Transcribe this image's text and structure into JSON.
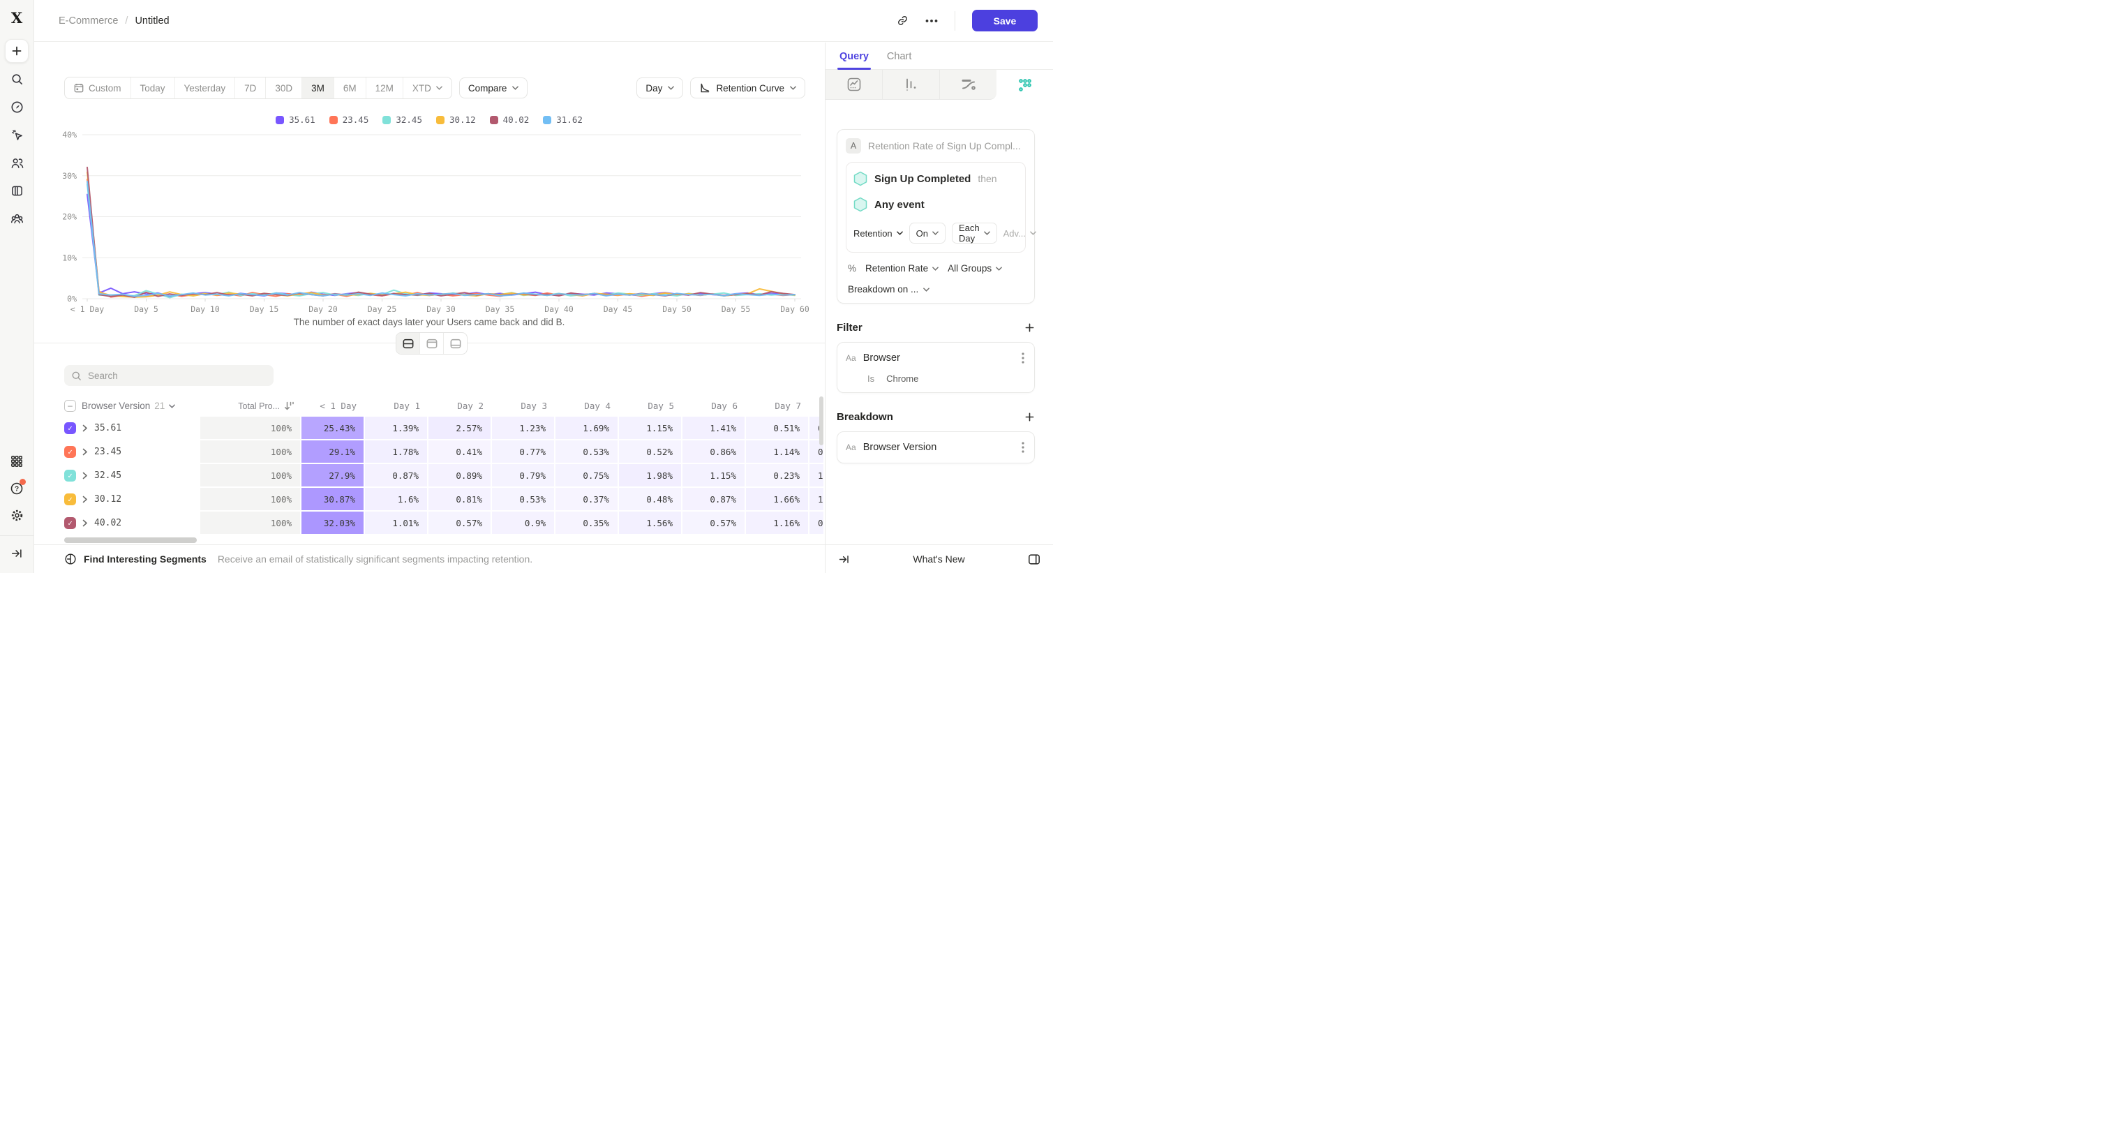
{
  "app": {
    "logo_letter": "X"
  },
  "header": {
    "breadcrumb": {
      "project": "E-Commerce",
      "separator": "/",
      "title": "Untitled"
    },
    "save_label": "Save"
  },
  "toolbar": {
    "ranges": [
      "Custom",
      "Today",
      "Yesterday",
      "7D",
      "30D",
      "3M",
      "6M",
      "12M",
      "XTD"
    ],
    "selected_range": "3M",
    "compare_label": "Compare",
    "granularity_label": "Day",
    "chart_type_label": "Retention Curve"
  },
  "search": {
    "placeholder": "Search"
  },
  "table": {
    "group_label": "Browser Version",
    "group_count": "21",
    "total_label": "Total Pro...",
    "day_columns": [
      "< 1 Day",
      "Day 1",
      "Day 2",
      "Day 3",
      "Day 4",
      "Day 5",
      "Day 6",
      "Day 7"
    ],
    "rows": [
      {
        "label": "35.61",
        "color": "#7856FF",
        "total": "100%",
        "cells": [
          "25.43%",
          "1.39%",
          "2.57%",
          "1.23%",
          "1.69%",
          "1.15%",
          "1.41%",
          "0.51%"
        ],
        "clipped": "0"
      },
      {
        "label": "23.45",
        "color": "#FF7557",
        "total": "100%",
        "cells": [
          "29.1%",
          "1.78%",
          "0.41%",
          "0.77%",
          "0.53%",
          "0.52%",
          "0.86%",
          "1.14%"
        ],
        "clipped": "0"
      },
      {
        "label": "32.45",
        "color": "#80E1D9",
        "total": "100%",
        "cells": [
          "27.9%",
          "0.87%",
          "0.89%",
          "0.79%",
          "0.75%",
          "1.98%",
          "1.15%",
          "0.23%"
        ],
        "clipped": "1"
      },
      {
        "label": "30.12",
        "color": "#F8BC3B",
        "total": "100%",
        "cells": [
          "30.87%",
          "1.6%",
          "0.81%",
          "0.53%",
          "0.37%",
          "0.48%",
          "0.87%",
          "1.66%"
        ],
        "clipped": "1"
      },
      {
        "label": "40.02",
        "color": "#B2596E",
        "total": "100%",
        "cells": [
          "32.03%",
          "1.01%",
          "0.57%",
          "0.9%",
          "0.35%",
          "1.56%",
          "0.57%",
          "1.16%"
        ],
        "clipped": "0"
      }
    ]
  },
  "chart_data": {
    "type": "line",
    "caption": "The number of exact days later your Users came back and did B.",
    "ylim": [
      0,
      40
    ],
    "y_ticks": [
      {
        "value": 0,
        "label": "0%"
      },
      {
        "value": 10,
        "label": "10%"
      },
      {
        "value": 20,
        "label": "20%"
      },
      {
        "value": 30,
        "label": "30%"
      },
      {
        "value": 40,
        "label": "40%"
      }
    ],
    "x_tick_labels": [
      "< 1 Day",
      "Day 5",
      "Day 10",
      "Day 15",
      "Day 20",
      "Day 25",
      "Day 30",
      "Day 35",
      "Day 40",
      "Day 45",
      "Day 50",
      "Day 55",
      "Day 60"
    ],
    "x_tick_step_days": 5,
    "x_range_days": [
      0,
      60
    ],
    "grid": "horizontal",
    "legend_position": "top",
    "series": [
      {
        "name": "35.61",
        "color": "#7856FF",
        "values": [
          25.43,
          1.39,
          2.57,
          1.23,
          1.69,
          1.15,
          1.41,
          0.51,
          0.9,
          1.2,
          1.5,
          1.1,
          0.8,
          1.3,
          1.0,
          0.7,
          1.4,
          1.2,
          0.9,
          1.6,
          1.1,
          0.8,
          1.2,
          1.5,
          1.0,
          0.7,
          1.3,
          1.1,
          0.9,
          1.4,
          1.2,
          0.8,
          1.1,
          1.5,
          1.0,
          1.3,
          0.9,
          1.2,
          1.6,
          1.0,
          0.8,
          1.3,
          1.1,
          0.9,
          1.4,
          1.2,
          1.0,
          0.7,
          1.2,
          1.5,
          1.1,
          0.9,
          1.3,
          1.0,
          0.8,
          1.2,
          1.4,
          1.0,
          1.3,
          1.1,
          0.9
        ]
      },
      {
        "name": "23.45",
        "color": "#FF7557",
        "values": [
          29.1,
          1.78,
          0.41,
          0.77,
          0.53,
          0.52,
          0.86,
          1.14,
          0.6,
          1.0,
          1.3,
          0.8,
          1.1,
          0.7,
          1.5,
          1.0,
          0.6,
          1.2,
          0.9,
          1.4,
          0.8,
          1.1,
          0.6,
          1.3,
          1.0,
          0.7,
          1.2,
          0.9,
          1.5,
          0.8,
          1.1,
          0.7,
          1.0,
          1.3,
          0.9,
          0.6,
          1.2,
          1.0,
          0.8,
          1.4,
          0.9,
          1.1,
          0.7,
          1.3,
          1.0,
          0.8,
          1.2,
          0.6,
          1.0,
          1.4,
          0.9,
          1.1,
          0.8,
          1.2,
          0.7,
          1.0,
          1.3,
          0.9,
          1.1,
          0.8,
          1.0
        ]
      },
      {
        "name": "32.45",
        "color": "#80E1D9",
        "values": [
          27.9,
          0.87,
          0.89,
          0.79,
          0.75,
          1.98,
          1.15,
          0.23,
          1.1,
          0.7,
          1.3,
          1.0,
          1.6,
          0.8,
          1.2,
          0.9,
          1.4,
          1.0,
          0.7,
          1.2,
          1.5,
          0.9,
          1.1,
          0.8,
          1.3,
          1.0,
          2.1,
          1.2,
          0.8,
          1.1,
          0.9,
          1.4,
          1.0,
          0.7,
          1.2,
          1.0,
          1.5,
          0.8,
          1.1,
          0.9,
          1.3,
          0.7,
          1.0,
          1.2,
          0.9,
          1.4,
          1.1,
          0.8,
          1.2,
          1.0,
          0.7,
          1.3,
          0.9,
          1.1,
          1.4,
          0.8,
          1.0,
          1.2,
          0.9,
          1.1,
          0.8
        ]
      },
      {
        "name": "30.12",
        "color": "#F8BC3B",
        "values": [
          30.87,
          1.6,
          0.81,
          0.53,
          0.37,
          0.48,
          0.87,
          1.66,
          1.0,
          0.7,
          1.2,
          0.9,
          1.4,
          1.1,
          0.8,
          1.3,
          1.0,
          0.7,
          1.2,
          1.5,
          0.9,
          1.1,
          0.8,
          1.0,
          1.3,
          0.9,
          1.2,
          1.6,
          1.0,
          0.8,
          1.1,
          1.3,
          0.9,
          0.7,
          1.2,
          1.0,
          1.4,
          0.9,
          1.1,
          0.8,
          1.2,
          1.0,
          0.7,
          1.3,
          1.1,
          0.9,
          1.2,
          1.0,
          0.8,
          1.4,
          1.0,
          1.2,
          0.9,
          1.1,
          0.7,
          1.0,
          1.2,
          2.4,
          1.8,
          1.2,
          0.9
        ]
      },
      {
        "name": "40.02",
        "color": "#B2596E",
        "values": [
          32.03,
          1.01,
          0.57,
          0.9,
          0.35,
          1.56,
          0.57,
          1.16,
          0.8,
          1.2,
          1.0,
          1.5,
          0.9,
          1.1,
          0.7,
          1.3,
          1.0,
          0.8,
          1.4,
          1.0,
          0.7,
          1.2,
          0.9,
          1.6,
          1.1,
          0.8,
          1.2,
          1.0,
          0.9,
          1.3,
          0.7,
          1.1,
          1.5,
          0.9,
          1.2,
          0.8,
          1.0,
          1.3,
          0.9,
          1.1,
          0.7,
          1.4,
          1.0,
          1.2,
          0.8,
          1.1,
          0.9,
          1.3,
          1.0,
          0.7,
          1.2,
          0.9,
          1.5,
          1.1,
          0.8,
          1.0,
          1.2,
          0.9,
          1.7,
          1.3,
          1.0
        ]
      },
      {
        "name": "31.62",
        "color": "#72BEF4",
        "values": [
          28.6,
          1.2,
          0.9,
          1.1,
          0.6,
          0.8,
          1.3,
          0.7,
          1.0,
          1.4,
          0.9,
          1.1,
          0.7,
          1.2,
          1.0,
          0.8,
          1.3,
          0.9,
          1.5,
          1.0,
          0.7,
          1.1,
          0.9,
          1.2,
          0.8,
          1.4,
          1.0,
          0.7,
          1.2,
          0.9,
          1.1,
          1.3,
          0.8,
          1.0,
          1.2,
          0.7,
          0.9,
          1.4,
          1.1,
          0.8,
          1.2,
          1.0,
          0.9,
          1.3,
          0.7,
          1.1,
          0.9,
          1.2,
          1.0,
          0.8,
          1.3,
          1.0,
          0.9,
          1.1,
          0.7,
          1.2,
          1.0,
          0.8,
          1.1,
          0.9,
          1.0
        ]
      }
    ]
  },
  "footer": {
    "title": "Find Interesting Segments",
    "subtitle": "Receive an email of statistically significant segments impacting retention."
  },
  "panel": {
    "tabs": [
      {
        "label": "Query",
        "active": true
      },
      {
        "label": "Chart",
        "active": false
      }
    ],
    "query": {
      "badge": "A",
      "title": "Retention Rate of Sign Up Compl...",
      "first_event": "Sign Up Completed",
      "then_label": "then",
      "return_event": "Any event",
      "retention_label": "Retention",
      "on_label": "On",
      "bucket_label": "Each Day",
      "advanced_label": "Adv...",
      "percent_icon": "%",
      "measure_label": "Retention Rate",
      "groups_label": "All Groups",
      "breakdown_on_label": "Breakdown on ..."
    },
    "filter": {
      "heading": "Filter",
      "type_icon": "Aa",
      "property": "Browser",
      "operator": "Is",
      "value": "Chrome"
    },
    "breakdown": {
      "heading": "Breakdown",
      "type_icon": "Aa",
      "property": "Browser Version"
    },
    "footer": {
      "whats_new": "What's New"
    }
  },
  "colors": {
    "accent": "#4f44e0",
    "save_button": "#4c40df",
    "selected_chart_type_icon": "#2fc5b0",
    "table_highlight_rgb": "120,86,255"
  }
}
